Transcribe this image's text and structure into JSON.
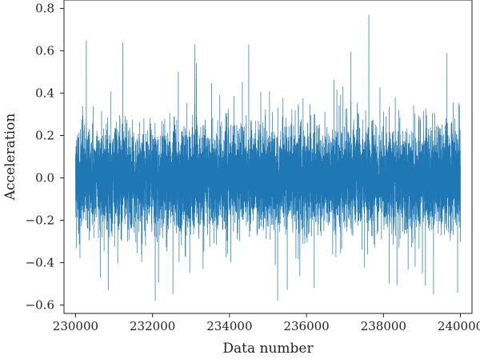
{
  "chart_data": {
    "type": "line",
    "title": "",
    "xlabel": "Data number",
    "ylabel": "Acceleration",
    "xlim": [
      229700,
      240300
    ],
    "ylim": [
      -0.64,
      0.84
    ],
    "xticks": [
      230000,
      232000,
      234000,
      236000,
      238000,
      240000
    ],
    "xtick_labels": [
      "230000",
      "232000",
      "234000",
      "236000",
      "238000",
      "240000"
    ],
    "yticks": [
      -0.6,
      -0.4,
      -0.2,
      0.0,
      0.2,
      0.4,
      0.6,
      0.8
    ],
    "ytick_labels": [
      "−0.6",
      "−0.4",
      "−0.2",
      "0.0",
      "0.2",
      "0.4",
      "0.6",
      "0.8"
    ],
    "grid": false,
    "legend": "none",
    "line_color": "#1f77b4",
    "series": [
      {
        "x_start": 230000,
        "x_end": 240000,
        "x_step": 1,
        "count": 10001,
        "approx_core_band": [
          -0.2,
          0.2
        ],
        "approx_range": [
          -0.58,
          0.77
        ],
        "extremes": [
          {
            "x": 237620,
            "y": 0.77
          },
          {
            "x": 230280,
            "y": 0.65
          },
          {
            "x": 231230,
            "y": 0.64
          },
          {
            "x": 233100,
            "y": 0.63
          },
          {
            "x": 234500,
            "y": 0.63
          },
          {
            "x": 239650,
            "y": 0.59
          },
          {
            "x": 232070,
            "y": -0.58
          },
          {
            "x": 235250,
            "y": -0.58
          },
          {
            "x": 232530,
            "y": -0.55
          },
          {
            "x": 239300,
            "y": -0.55
          },
          {
            "x": 230850,
            "y": -0.53
          },
          {
            "x": 236200,
            "y": -0.52
          },
          {
            "x": 238150,
            "y": -0.5
          }
        ]
      }
    ]
  }
}
